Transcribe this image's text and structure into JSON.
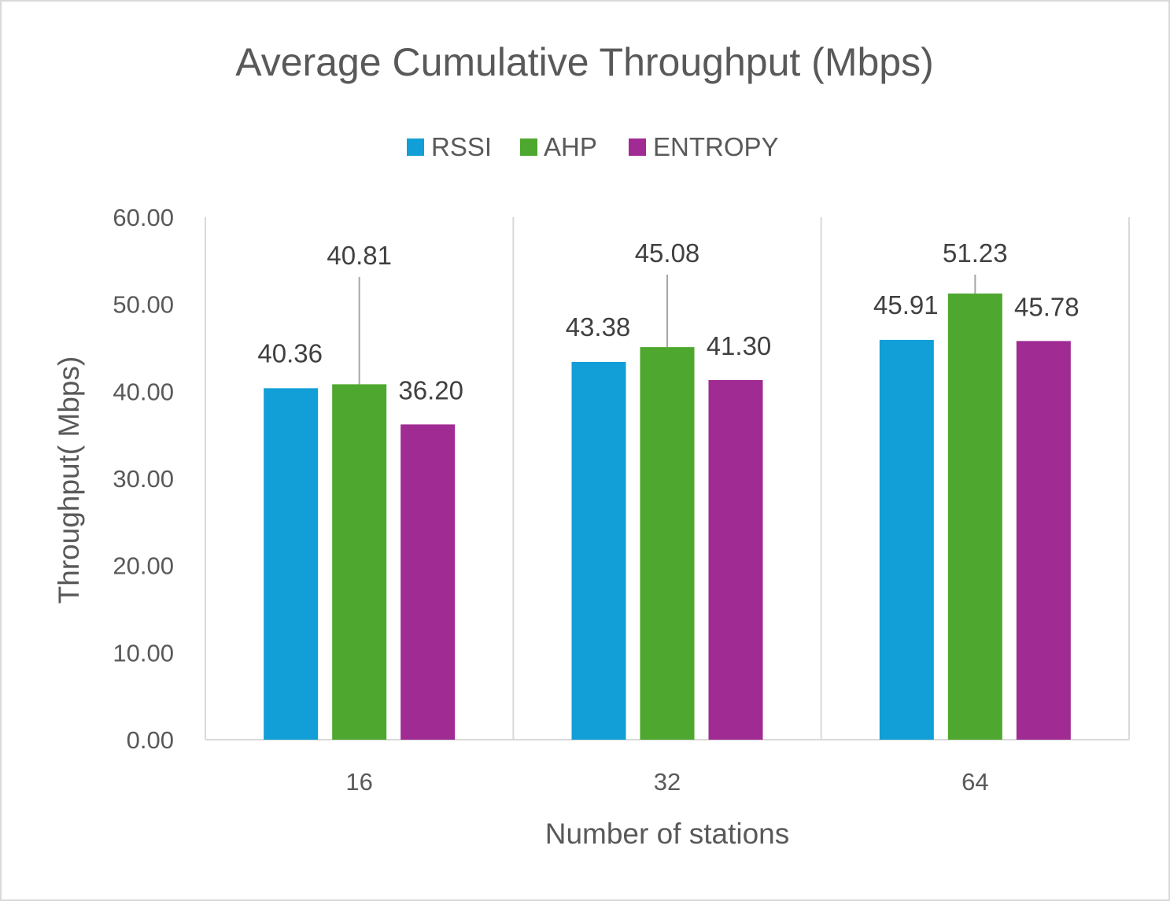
{
  "chart_data": {
    "type": "bar",
    "title": "Average Cumulative Throughput (Mbps)",
    "xlabel": "Number of stations",
    "ylabel": "Throughput( Mbps)",
    "categories": [
      "16",
      "32",
      "64"
    ],
    "ylim": [
      0,
      60
    ],
    "ytick_step": 10,
    "ytick_labels": [
      "0.00",
      "10.00",
      "20.00",
      "30.00",
      "40.00",
      "50.00",
      "60.00"
    ],
    "grid": "vertical",
    "legend_position": "top",
    "series": [
      {
        "name": "RSSI",
        "color": "#129FD7",
        "values": [
          40.36,
          43.38,
          45.91
        ],
        "labels": [
          "40.36",
          "43.38",
          "45.91"
        ]
      },
      {
        "name": "AHP",
        "color": "#4EA72E",
        "values": [
          40.81,
          45.08,
          51.23
        ],
        "labels": [
          "40.81",
          "45.08",
          "51.23"
        ]
      },
      {
        "name": "ENTROPY",
        "color": "#A02B93",
        "values": [
          36.2,
          41.3,
          45.78
        ],
        "labels": [
          "36.20",
          "41.30",
          "45.78"
        ]
      }
    ]
  }
}
